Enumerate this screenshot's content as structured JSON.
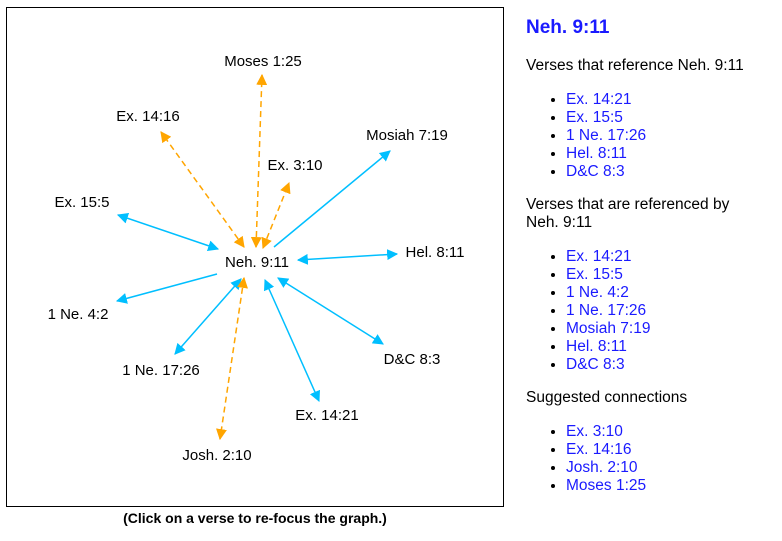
{
  "graph": {
    "focus": "Neh. 9:11",
    "caption": "(Click on a verse to re-focus the graph.)",
    "colors": {
      "reference": "#00bfff",
      "suggested": "#ffa500"
    },
    "nodes": [
      {
        "id": "neh911",
        "label": "Neh. 9:11"
      },
      {
        "id": "moses125",
        "label": "Moses 1:25"
      },
      {
        "id": "ex1416",
        "label": "Ex. 14:16"
      },
      {
        "id": "mosiah719",
        "label": "Mosiah 7:19"
      },
      {
        "id": "ex310",
        "label": "Ex. 3:10"
      },
      {
        "id": "ex155",
        "label": "Ex. 15:5"
      },
      {
        "id": "hel811",
        "label": "Hel. 8:11"
      },
      {
        "id": "1ne42",
        "label": "1 Ne. 4:2"
      },
      {
        "id": "dc83",
        "label": "D&C 8:3"
      },
      {
        "id": "1ne1726",
        "label": "1 Ne. 17:26"
      },
      {
        "id": "ex1421",
        "label": "Ex. 14:21"
      },
      {
        "id": "josh210",
        "label": "Josh. 2:10"
      }
    ],
    "edges": [
      {
        "to": "mosiah719",
        "kind": "reference",
        "bidirectional": false
      },
      {
        "to": "ex155",
        "kind": "reference",
        "bidirectional": true
      },
      {
        "to": "hel811",
        "kind": "reference",
        "bidirectional": true
      },
      {
        "to": "1ne42",
        "kind": "reference",
        "bidirectional": false
      },
      {
        "to": "dc83",
        "kind": "reference",
        "bidirectional": true
      },
      {
        "to": "1ne1726",
        "kind": "reference",
        "bidirectional": true
      },
      {
        "to": "ex1421",
        "kind": "reference",
        "bidirectional": true
      },
      {
        "to": "moses125",
        "kind": "suggested",
        "bidirectional": true
      },
      {
        "to": "ex1416",
        "kind": "suggested",
        "bidirectional": true
      },
      {
        "to": "ex310",
        "kind": "suggested",
        "bidirectional": true
      },
      {
        "to": "josh210",
        "kind": "suggested",
        "bidirectional": true
      }
    ]
  },
  "sidebar": {
    "title": "Neh. 9:11",
    "referencing_heading": "Verses that reference Neh. 9:11",
    "referencing": [
      "Ex. 14:21",
      "Ex. 15:5",
      "1 Ne. 17:26",
      "Hel. 8:11",
      "D&C 8:3"
    ],
    "referenced_heading": "Verses that are referenced by Neh. 9:11",
    "referenced": [
      "Ex. 14:21",
      "Ex. 15:5",
      "1 Ne. 4:2",
      "1 Ne. 17:26",
      "Mosiah 7:19",
      "Hel. 8:11",
      "D&C 8:3"
    ],
    "suggested_heading": "Suggested connections",
    "suggested": [
      "Ex. 3:10",
      "Ex. 14:16",
      "Josh. 2:10",
      "Moses 1:25"
    ]
  }
}
